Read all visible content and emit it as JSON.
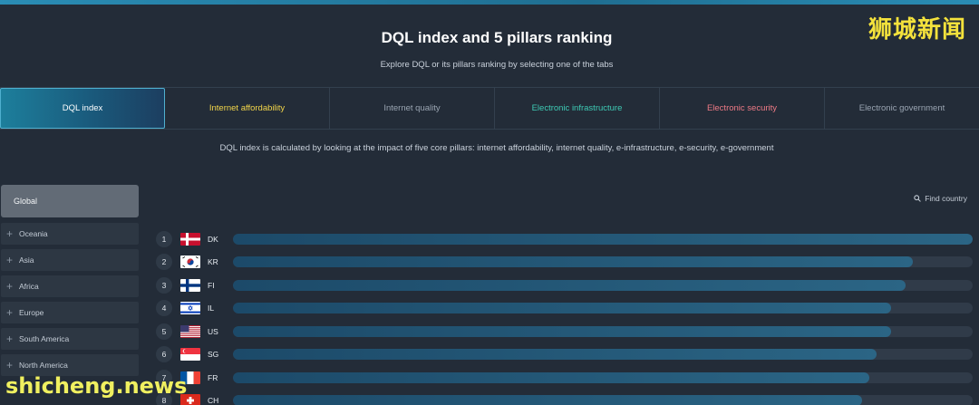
{
  "watermark_top": "狮城新闻",
  "watermark_bottom": "shicheng.news",
  "title": "DQL index and 5 pillars ranking",
  "subtitle": "Explore DQL or its pillars ranking by selecting one of the tabs",
  "tabs": [
    {
      "label": "DQL index",
      "color": "#ffffff",
      "active": true
    },
    {
      "label": "Internet affordability",
      "color": "#f3d64a"
    },
    {
      "label": "Internet quality",
      "color": "#9aa5b2"
    },
    {
      "label": "Electronic infrastructure",
      "color": "#3ecbb5"
    },
    {
      "label": "Electronic security",
      "color": "#ef7a86"
    },
    {
      "label": "Electronic government",
      "color": "#9aa5b2"
    }
  ],
  "description": "DQL index is calculated by looking at the impact of five core pillars: internet affordability, internet quality, e-infrastructure, e-security, e-government",
  "sidebar": {
    "global": "Global",
    "regions": [
      "Oceania",
      "Asia",
      "Africa",
      "Europe",
      "South America",
      "North America"
    ]
  },
  "find_country": "Find country",
  "ranking": [
    {
      "rank": "1",
      "code": "DK",
      "fraction": 1.0
    },
    {
      "rank": "2",
      "code": "KR",
      "fraction": 0.919
    },
    {
      "rank": "3",
      "code": "FI",
      "fraction": 0.909
    },
    {
      "rank": "4",
      "code": "IL",
      "fraction": 0.89
    },
    {
      "rank": "5",
      "code": "US",
      "fraction": 0.89
    },
    {
      "rank": "6",
      "code": "SG",
      "fraction": 0.87
    },
    {
      "rank": "7",
      "code": "FR",
      "fraction": 0.86
    },
    {
      "rank": "8",
      "code": "CH",
      "fraction": 0.85
    }
  ]
}
